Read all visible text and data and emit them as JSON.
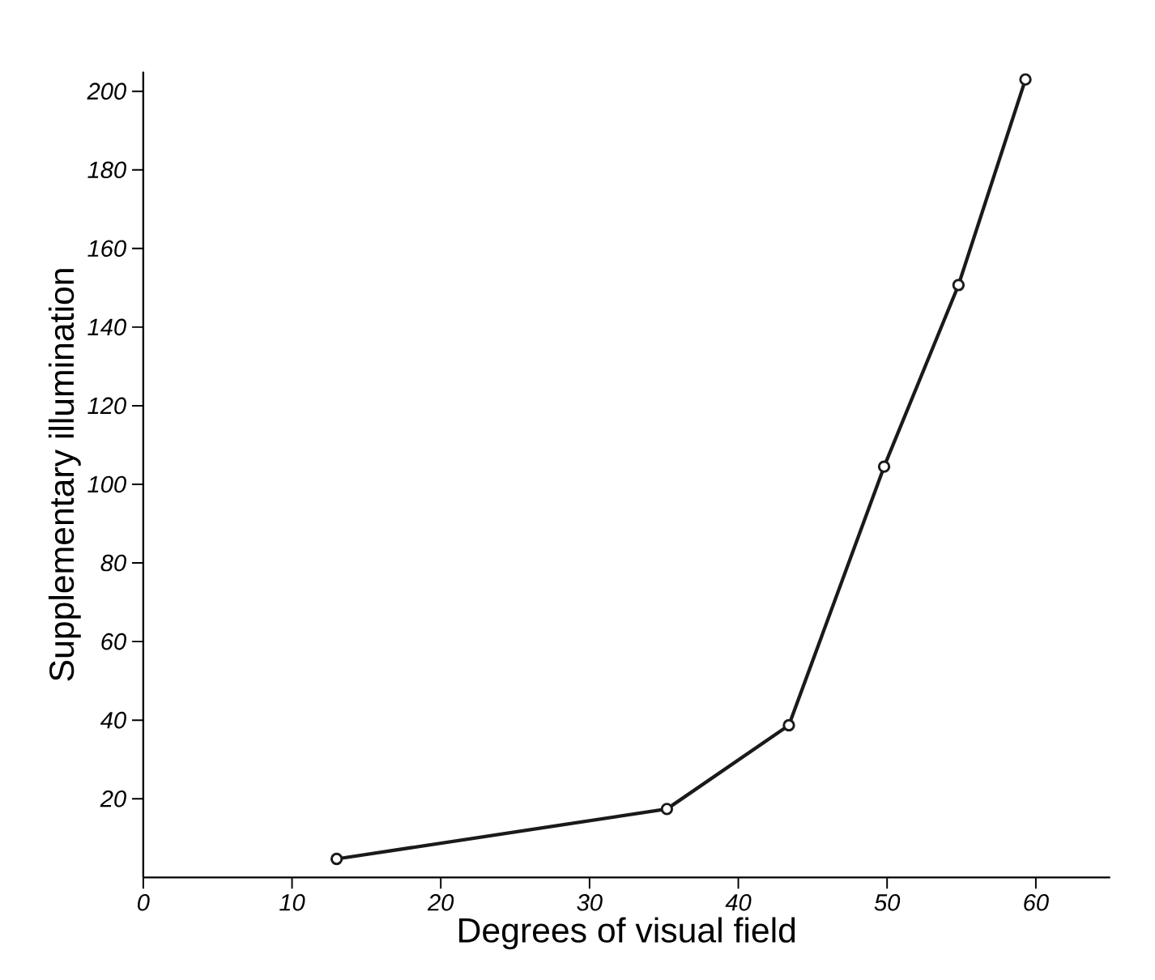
{
  "chart_data": {
    "type": "line",
    "xlabel": "Degrees of visual field",
    "ylabel": "Supplementary illumination",
    "x": [
      13,
      35.2,
      43.4,
      49.8,
      54.8,
      59.3
    ],
    "series": [
      {
        "color": "#1a1a1a",
        "values": [
          4.7,
          17.4,
          38.7,
          104.5,
          150.7,
          203
        ]
      }
    ],
    "xlim": [
      0,
      65
    ],
    "ylim": [
      0,
      205
    ],
    "xticks": [
      0,
      10,
      20,
      30,
      40,
      50,
      60
    ],
    "yticks": [
      20,
      40,
      60,
      80,
      100,
      120,
      140,
      160,
      180,
      200
    ],
    "marker": "circle",
    "line_style": "solid",
    "grid": false
  }
}
